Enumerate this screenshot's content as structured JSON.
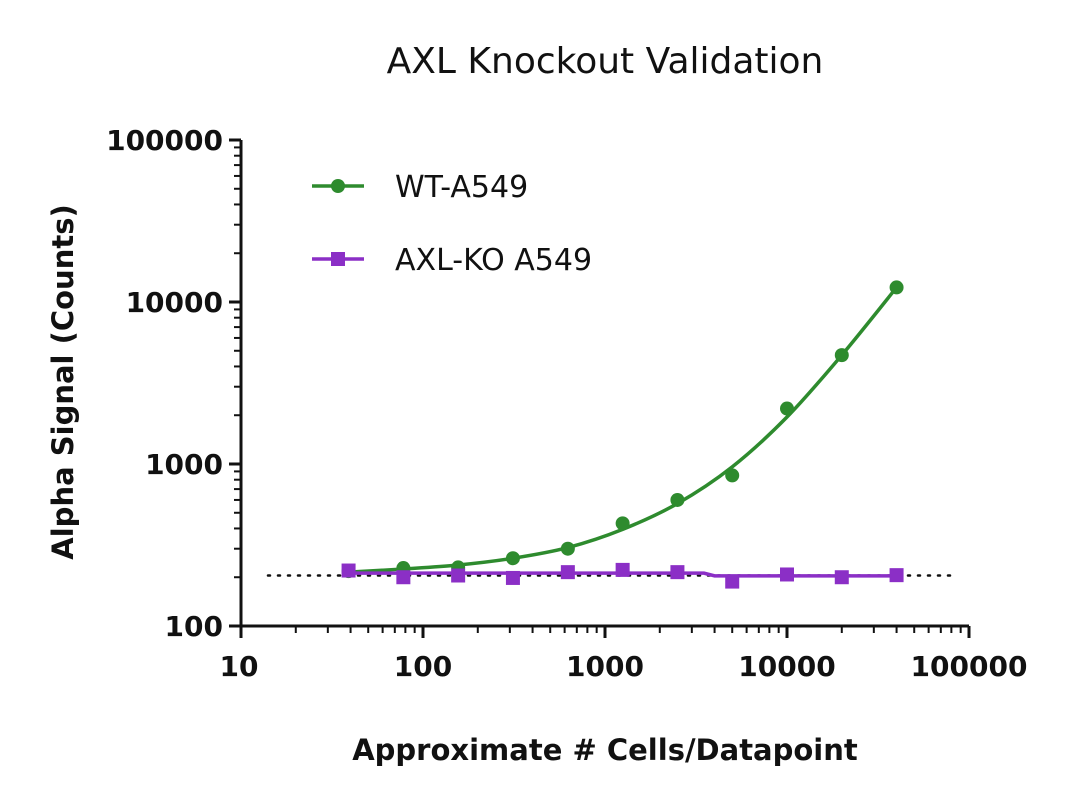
{
  "chart_data": {
    "type": "scatter",
    "title": "AXL Knockout Validation",
    "xlabel": "Approximate # Cells/Datapoint",
    "ylabel": "Alpha Signal (Counts)",
    "x_scale": "log",
    "y_scale": "log",
    "xlim": [
      10,
      100000
    ],
    "ylim": [
      100,
      100000
    ],
    "x_ticks": [
      10,
      100,
      1000,
      10000,
      100000
    ],
    "x_tick_labels": [
      "10",
      "100",
      "1000",
      "10000",
      "100000"
    ],
    "y_ticks": [
      100,
      1000,
      10000,
      100000
    ],
    "y_tick_labels": [
      "100",
      "1000",
      "10000",
      "100000"
    ],
    "grid": false,
    "legend_position": "top-left",
    "baseline": 205,
    "series": [
      {
        "name": "WT-A549",
        "color": "#2e8b2e",
        "marker": "circle",
        "fit": "curve",
        "x": [
          39,
          78,
          156,
          312,
          625,
          1250,
          2500,
          5000,
          10000,
          20000,
          40000
        ],
        "y": [
          218,
          228,
          230,
          262,
          300,
          430,
          600,
          850,
          2200,
          4700,
          12300
        ],
        "fit_curve": {
          "x": [
            39,
            78,
            156,
            312,
            625,
            1250,
            2500,
            5000,
            10000,
            20000,
            40000
          ],
          "y": [
            215,
            225,
            238,
            262,
            305,
            395,
            570,
            960,
            1950,
            4700,
            12300
          ]
        }
      },
      {
        "name": "AXL-KO A549",
        "color": "#8b2fc6",
        "marker": "square",
        "fit": "line",
        "x": [
          39,
          78,
          156,
          312,
          625,
          1250,
          2500,
          5000,
          10000,
          20000,
          40000
        ],
        "y": [
          220,
          200,
          205,
          198,
          215,
          222,
          215,
          188,
          208,
          200,
          206
        ],
        "fit_curve": {
          "x": [
            39,
            3500,
            4000,
            40000
          ],
          "y": [
            212,
            212,
            204,
            204
          ]
        }
      }
    ]
  }
}
